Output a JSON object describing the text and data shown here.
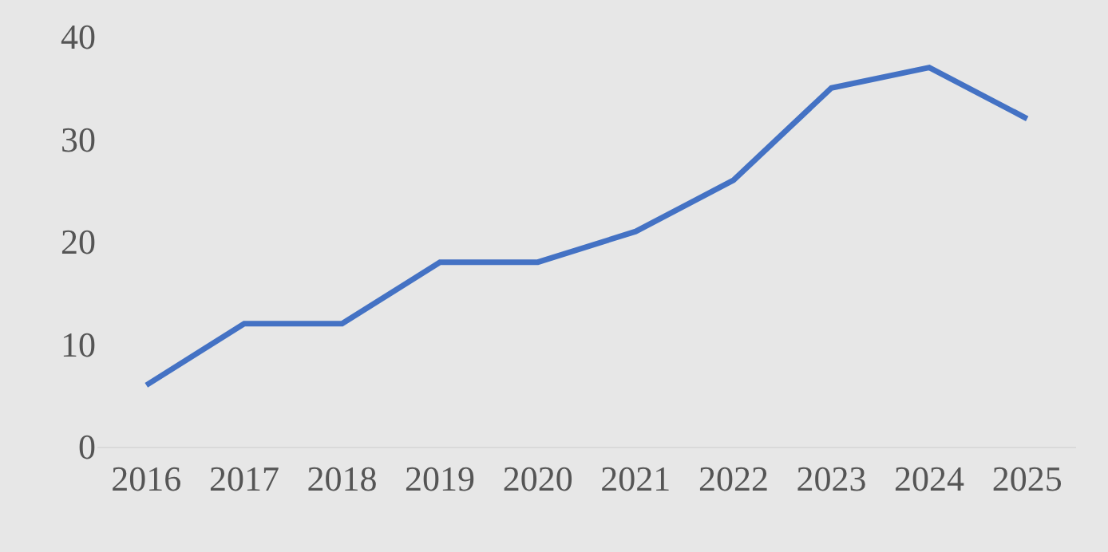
{
  "chart_data": {
    "type": "line",
    "categories": [
      "2016",
      "2017",
      "2018",
      "2019",
      "2020",
      "2021",
      "2022",
      "2023",
      "2024",
      "2025"
    ],
    "values": [
      6,
      12,
      12,
      18,
      18,
      21,
      26,
      35,
      37,
      32
    ],
    "color": "#4472c4",
    "ylim": [
      0,
      40
    ],
    "yticks": [
      0,
      10,
      20,
      30,
      40
    ],
    "grid": false,
    "legend": false,
    "marker": "none",
    "line_style": "solid"
  }
}
